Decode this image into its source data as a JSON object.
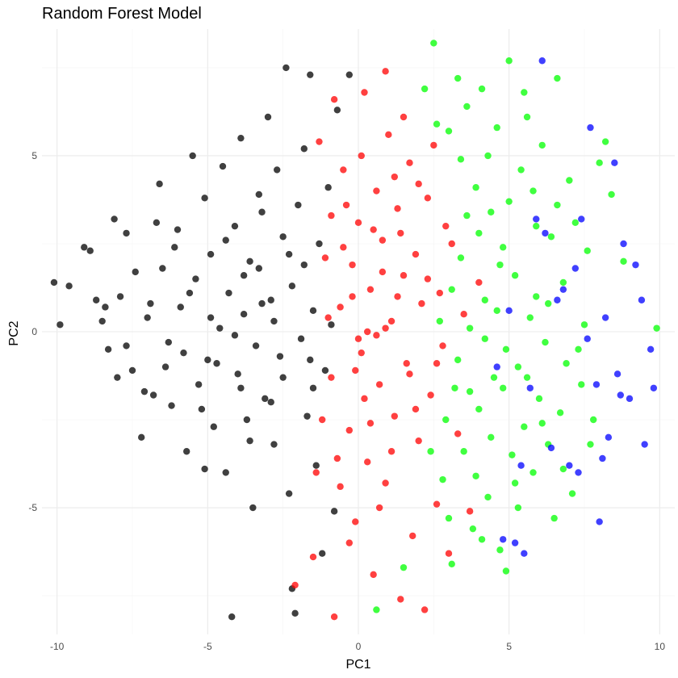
{
  "chart_data": {
    "type": "scatter",
    "title": "Random Forest Model",
    "xlabel": "PC1",
    "ylabel": "PC2",
    "xlim": [
      -10.5,
      10.5
    ],
    "ylim": [
      -8.6,
      8.6
    ],
    "x_ticks": [
      -10,
      -5,
      0,
      5,
      10
    ],
    "y_ticks": [
      -5,
      0,
      5
    ],
    "x_tick_labels": [
      "-10",
      "-5",
      "0",
      "5",
      "10"
    ],
    "y_tick_labels": [
      "-5",
      "0",
      "5"
    ],
    "grid": true,
    "legend": "none",
    "series": [
      {
        "color": "#000000",
        "points": [
          [
            -10.1,
            1.4
          ],
          [
            -9.9,
            0.2
          ],
          [
            -9.6,
            1.3
          ],
          [
            -9.1,
            2.4
          ],
          [
            -8.9,
            2.3
          ],
          [
            -8.7,
            0.9
          ],
          [
            -8.5,
            0.3
          ],
          [
            -8.3,
            -0.5
          ],
          [
            -8.1,
            3.2
          ],
          [
            -7.9,
            1.0
          ],
          [
            -7.7,
            2.8
          ],
          [
            -7.5,
            -1.1
          ],
          [
            -7.2,
            -3.0
          ],
          [
            -7.0,
            0.4
          ],
          [
            -6.8,
            -1.8
          ],
          [
            -6.6,
            4.2
          ],
          [
            -6.5,
            1.8
          ],
          [
            -6.3,
            -0.3
          ],
          [
            -6.2,
            -2.1
          ],
          [
            -6.0,
            2.9
          ],
          [
            -5.9,
            0.7
          ],
          [
            -5.7,
            -3.4
          ],
          [
            -5.5,
            5.0
          ],
          [
            -5.4,
            1.5
          ],
          [
            -5.3,
            -1.5
          ],
          [
            -5.1,
            3.8
          ],
          [
            -5.0,
            -0.8
          ],
          [
            -4.9,
            2.2
          ],
          [
            -4.8,
            -2.7
          ],
          [
            -4.6,
            0.1
          ],
          [
            -4.5,
            4.7
          ],
          [
            -4.4,
            -4.0
          ],
          [
            -4.3,
            1.1
          ],
          [
            -4.2,
            -8.1
          ],
          [
            -4.1,
            3.0
          ],
          [
            -4.0,
            -1.2
          ],
          [
            -3.9,
            5.5
          ],
          [
            -3.8,
            0.5
          ],
          [
            -3.7,
            -2.5
          ],
          [
            -3.6,
            2.0
          ],
          [
            -3.5,
            -5.0
          ],
          [
            -3.4,
            -0.4
          ],
          [
            -3.3,
            1.8
          ],
          [
            -3.2,
            3.4
          ],
          [
            -3.1,
            -1.9
          ],
          [
            -3.0,
            6.1
          ],
          [
            -2.9,
            0.9
          ],
          [
            -2.8,
            -3.2
          ],
          [
            -2.7,
            4.6
          ],
          [
            -2.6,
            -0.7
          ],
          [
            -2.5,
            2.7
          ],
          [
            -2.4,
            7.5
          ],
          [
            -2.3,
            -4.6
          ],
          [
            -2.2,
            -7.3
          ],
          [
            -2.2,
            1.3
          ],
          [
            -2.1,
            -8.0
          ],
          [
            -2.0,
            3.6
          ],
          [
            -1.9,
            -0.2
          ],
          [
            -1.8,
            5.2
          ],
          [
            -1.7,
            -2.4
          ],
          [
            -1.6,
            7.3
          ],
          [
            -1.5,
            0.6
          ],
          [
            -1.4,
            -3.8
          ],
          [
            -1.3,
            2.5
          ],
          [
            -1.2,
            -6.3
          ],
          [
            -1.1,
            -1.1
          ],
          [
            -1.0,
            4.1
          ],
          [
            -0.9,
            0.2
          ],
          [
            -0.8,
            -5.1
          ],
          [
            -0.7,
            6.3
          ],
          [
            -5.8,
            -0.6
          ],
          [
            -6.9,
            0.8
          ],
          [
            -4.7,
            -0.9
          ],
          [
            -3.9,
            -1.6
          ],
          [
            -2.8,
            0.3
          ],
          [
            -7.4,
            1.7
          ],
          [
            -8.0,
            -1.3
          ],
          [
            -6.1,
            2.4
          ],
          [
            -5.2,
            -2.2
          ],
          [
            -4.1,
            -0.1
          ],
          [
            -3.2,
            0.8
          ],
          [
            -2.5,
            -1.3
          ],
          [
            -1.8,
            1.9
          ],
          [
            -5.6,
            1.1
          ],
          [
            -4.9,
            0.4
          ],
          [
            -3.6,
            -3.1
          ],
          [
            -6.4,
            -1.0
          ],
          [
            -7.7,
            -0.4
          ],
          [
            -2.9,
            -2.0
          ],
          [
            -1.5,
            -1.6
          ],
          [
            -4.4,
            2.6
          ],
          [
            -3.3,
            3.9
          ],
          [
            -5.1,
            -3.9
          ],
          [
            -6.7,
            3.1
          ],
          [
            -0.3,
            7.3
          ],
          [
            -7.1,
            -1.7
          ],
          [
            -8.4,
            0.7
          ],
          [
            -3.8,
            1.6
          ],
          [
            -2.3,
            2.2
          ],
          [
            -1.6,
            -0.8
          ]
        ]
      },
      {
        "color": "#ff0000",
        "points": [
          [
            -2.1,
            -7.2
          ],
          [
            -1.5,
            -6.4
          ],
          [
            -0.8,
            -8.1
          ],
          [
            -0.5,
            4.6
          ],
          [
            -0.3,
            -2.8
          ],
          [
            -0.2,
            1.9
          ],
          [
            -0.1,
            -5.4
          ],
          [
            0.0,
            3.1
          ],
          [
            0.1,
            -0.6
          ],
          [
            0.2,
            6.8
          ],
          [
            0.3,
            -3.7
          ],
          [
            0.4,
            1.2
          ],
          [
            0.5,
            -6.9
          ],
          [
            0.6,
            4.0
          ],
          [
            0.7,
            -1.5
          ],
          [
            0.8,
            2.6
          ],
          [
            0.9,
            -4.3
          ],
          [
            1.0,
            5.6
          ],
          [
            1.1,
            0.3
          ],
          [
            1.2,
            -2.4
          ],
          [
            1.3,
            3.5
          ],
          [
            1.4,
            -7.6
          ],
          [
            1.5,
            1.6
          ],
          [
            1.6,
            -0.9
          ],
          [
            1.7,
            4.8
          ],
          [
            1.8,
            -5.8
          ],
          [
            1.9,
            2.2
          ],
          [
            2.0,
            -3.1
          ],
          [
            2.1,
            0.8
          ],
          [
            2.2,
            -7.9
          ],
          [
            2.3,
            3.8
          ],
          [
            2.4,
            -1.8
          ],
          [
            2.5,
            5.3
          ],
          [
            2.6,
            -4.9
          ],
          [
            2.7,
            1.1
          ],
          [
            2.8,
            -0.4
          ],
          [
            2.9,
            3.0
          ],
          [
            3.0,
            -6.3
          ],
          [
            3.1,
            2.5
          ],
          [
            3.3,
            -2.9
          ],
          [
            3.5,
            0.5
          ],
          [
            3.7,
            -5.1
          ],
          [
            4.0,
            1.4
          ],
          [
            -1.1,
            2.1
          ],
          [
            -0.9,
            -1.3
          ],
          [
            -0.6,
            0.7
          ],
          [
            -1.2,
            -2.5
          ],
          [
            -0.4,
            3.6
          ],
          [
            0.2,
            -1.9
          ],
          [
            0.9,
            0.1
          ],
          [
            -1.3,
            5.4
          ],
          [
            -0.7,
            -3.6
          ],
          [
            0.5,
            2.9
          ],
          [
            1.2,
            4.4
          ],
          [
            1.7,
            -1.2
          ],
          [
            0.0,
            -0.2
          ],
          [
            -0.2,
            1.0
          ],
          [
            0.4,
            -2.6
          ],
          [
            0.8,
            1.7
          ],
          [
            -0.6,
            -4.4
          ],
          [
            1.4,
            2.8
          ],
          [
            0.1,
            5.0
          ],
          [
            -0.9,
            3.3
          ],
          [
            1.9,
            -2.2
          ],
          [
            0.6,
            -0.1
          ],
          [
            -0.3,
            -6.0
          ],
          [
            1.1,
            -3.4
          ],
          [
            2.0,
            4.2
          ],
          [
            -1.0,
            0.4
          ],
          [
            0.3,
            0.0
          ],
          [
            1.5,
            6.1
          ],
          [
            -0.5,
            2.4
          ],
          [
            2.6,
            -0.9
          ],
          [
            0.7,
            -5.0
          ],
          [
            -1.4,
            -4.0
          ],
          [
            1.3,
            1.0
          ],
          [
            -0.1,
            -1.1
          ],
          [
            2.3,
            1.5
          ],
          [
            0.9,
            7.4
          ],
          [
            -0.8,
            6.6
          ]
        ]
      },
      {
        "color": "#00ff00",
        "points": [
          [
            0.6,
            -7.9
          ],
          [
            1.5,
            -6.7
          ],
          [
            2.2,
            6.9
          ],
          [
            2.5,
            8.2
          ],
          [
            2.8,
            -4.2
          ],
          [
            3.0,
            5.7
          ],
          [
            3.1,
            -6.6
          ],
          [
            3.2,
            -1.6
          ],
          [
            3.3,
            7.2
          ],
          [
            3.4,
            2.1
          ],
          [
            3.5,
            -3.4
          ],
          [
            3.6,
            6.4
          ],
          [
            3.7,
            0.1
          ],
          [
            3.8,
            -5.6
          ],
          [
            3.9,
            4.1
          ],
          [
            4.0,
            -2.2
          ],
          [
            4.1,
            6.9
          ],
          [
            4.2,
            0.9
          ],
          [
            4.3,
            -4.7
          ],
          [
            4.4,
            3.4
          ],
          [
            4.5,
            -1.3
          ],
          [
            4.6,
            5.8
          ],
          [
            4.7,
            -6.2
          ],
          [
            4.8,
            2.4
          ],
          [
            4.9,
            -0.5
          ],
          [
            5.0,
            7.7
          ],
          [
            5.1,
            -3.5
          ],
          [
            5.2,
            1.6
          ],
          [
            5.3,
            -5.0
          ],
          [
            5.4,
            4.6
          ],
          [
            5.5,
            -2.7
          ],
          [
            5.6,
            6.1
          ],
          [
            5.7,
            0.4
          ],
          [
            5.8,
            -4.0
          ],
          [
            5.9,
            3.0
          ],
          [
            6.0,
            -1.9
          ],
          [
            6.1,
            5.3
          ],
          [
            6.2,
            -0.3
          ],
          [
            6.3,
            -3.2
          ],
          [
            6.4,
            2.7
          ],
          [
            6.5,
            -5.3
          ],
          [
            6.6,
            7.2
          ],
          [
            6.7,
            -2.3
          ],
          [
            6.8,
            1.4
          ],
          [
            6.9,
            -0.9
          ],
          [
            7.0,
            4.3
          ],
          [
            7.1,
            -4.6
          ],
          [
            7.2,
            3.1
          ],
          [
            7.4,
            -1.5
          ],
          [
            7.5,
            0.2
          ],
          [
            7.6,
            2.3
          ],
          [
            7.8,
            -2.5
          ],
          [
            8.0,
            4.8
          ],
          [
            8.2,
            5.4
          ],
          [
            8.4,
            3.9
          ],
          [
            8.8,
            2.0
          ],
          [
            9.9,
            0.1
          ],
          [
            3.3,
            -0.8
          ],
          [
            4.2,
            -0.2
          ],
          [
            3.7,
            -1.7
          ],
          [
            4.6,
            0.6
          ],
          [
            5.3,
            -1.0
          ],
          [
            3.1,
            1.2
          ],
          [
            4.0,
            2.8
          ],
          [
            5.9,
            1.0
          ],
          [
            2.9,
            -2.5
          ],
          [
            4.4,
            -3.0
          ],
          [
            5.0,
            3.7
          ],
          [
            3.6,
            3.3
          ],
          [
            6.3,
            0.8
          ],
          [
            4.8,
            -1.6
          ],
          [
            2.7,
            0.3
          ],
          [
            5.6,
            -1.3
          ],
          [
            3.9,
            -4.1
          ],
          [
            6.6,
            3.6
          ],
          [
            4.3,
            5.0
          ],
          [
            5.2,
            -4.3
          ],
          [
            3.4,
            4.9
          ],
          [
            6.1,
            -2.6
          ],
          [
            7.3,
            -0.5
          ],
          [
            2.4,
            -3.4
          ],
          [
            4.7,
            1.9
          ],
          [
            5.8,
            4.0
          ],
          [
            3.0,
            -5.3
          ],
          [
            6.8,
            -3.9
          ],
          [
            4.1,
            -5.9
          ],
          [
            7.7,
            -3.2
          ],
          [
            2.6,
            5.9
          ],
          [
            5.5,
            6.8
          ],
          [
            4.9,
            -6.8
          ]
        ]
      },
      {
        "color": "#0000ff",
        "points": [
          [
            4.6,
            -1.0
          ],
          [
            4.8,
            -5.9
          ],
          [
            5.0,
            0.6
          ],
          [
            5.2,
            -6.0
          ],
          [
            5.4,
            -3.8
          ],
          [
            5.5,
            -6.3
          ],
          [
            5.7,
            -1.6
          ],
          [
            5.9,
            3.2
          ],
          [
            6.2,
            2.8
          ],
          [
            6.4,
            -3.3
          ],
          [
            6.6,
            0.9
          ],
          [
            6.8,
            1.2
          ],
          [
            7.0,
            -3.8
          ],
          [
            7.2,
            1.8
          ],
          [
            7.4,
            3.2
          ],
          [
            7.6,
            -0.2
          ],
          [
            7.7,
            5.8
          ],
          [
            7.9,
            -1.5
          ],
          [
            8.0,
            -5.4
          ],
          [
            8.2,
            0.4
          ],
          [
            8.3,
            -3.0
          ],
          [
            8.5,
            4.8
          ],
          [
            8.6,
            -1.2
          ],
          [
            8.7,
            -1.8
          ],
          [
            8.8,
            2.5
          ],
          [
            9.0,
            -1.9
          ],
          [
            9.2,
            1.9
          ],
          [
            9.4,
            0.9
          ],
          [
            9.5,
            -3.2
          ],
          [
            9.7,
            -0.5
          ],
          [
            9.8,
            -1.6
          ],
          [
            6.1,
            7.7
          ],
          [
            7.3,
            -4.0
          ],
          [
            8.1,
            -3.6
          ]
        ]
      }
    ]
  }
}
